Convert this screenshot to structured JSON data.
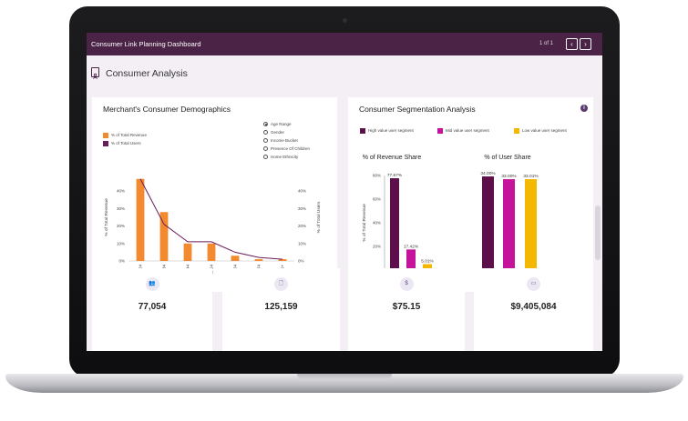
{
  "window": {
    "title": "Consumer Link Planning Dashboard",
    "page_indicator": "1 of 1",
    "prev_icon": "chevron-left-icon",
    "next_icon": "chevron-right-icon"
  },
  "section": {
    "title": "Consumer Analysis",
    "icon": "document-person-icon"
  },
  "demographics": {
    "title": "Merchant's Consumer Demographics",
    "legend": [
      {
        "label": "% of Total Revenue",
        "color": "#f28a30"
      },
      {
        "label": "% of Total Users",
        "color": "#6a1b5c"
      }
    ],
    "filters": [
      {
        "label": "Age Range",
        "selected": true
      },
      {
        "label": "Gender",
        "selected": false
      },
      {
        "label": "Income Bucket",
        "selected": false
      },
      {
        "label": "Presence Of Children",
        "selected": false
      },
      {
        "label": "Home Ethnicity",
        "selected": false
      }
    ]
  },
  "segmentation": {
    "title": "Consumer Segmentation Analysis",
    "info_icon": "info-icon",
    "legend": [
      {
        "label": "High value user segment",
        "color": "#5c0f4a"
      },
      {
        "label": "Mid value user segment",
        "color": "#c6139b"
      },
      {
        "label": "Low value user segment",
        "color": "#f5b800"
      }
    ]
  },
  "kpis": [
    {
      "icon": "users-icon",
      "glyph": "👥",
      "value": "77,054"
    },
    {
      "icon": "document-icon",
      "glyph": "🗋",
      "value": "125,159"
    },
    {
      "icon": "dollar-icon",
      "glyph": "$",
      "value": "$75.15"
    },
    {
      "icon": "card-icon",
      "glyph": "▭",
      "value": "$9,405,084"
    }
  ],
  "chart_data": [
    {
      "type": "bar",
      "title": "",
      "categories": [
        "18-24",
        "25-34",
        "35-44",
        "45-54",
        "55-64",
        "65-74",
        "75+"
      ],
      "series": [
        {
          "name": "% of Total Revenue",
          "type": "bar",
          "axis": "left",
          "values": [
            47,
            28,
            10,
            10,
            3,
            1,
            1
          ]
        },
        {
          "name": "% of Total Users",
          "type": "line",
          "axis": "right",
          "values": [
            47,
            21,
            11,
            11,
            5,
            2,
            1
          ]
        }
      ],
      "ylabel": "% of Total Revenue",
      "y2label": "% of Total Users",
      "ylim": [
        0,
        50
      ],
      "yticks": [
        "0%",
        "10%",
        "20%",
        "30%",
        "40%"
      ],
      "y2ticks": [
        "0%",
        "10%",
        "20%",
        "30%",
        "40%"
      ],
      "legend": "top-left"
    },
    {
      "type": "bar",
      "title": "% of Revenue Share",
      "categories": [
        "High value user segment",
        "Mid value user segment",
        "Low value user segment"
      ],
      "values": [
        77.67,
        17.42,
        5.01
      ],
      "data_labels": [
        "77.67%",
        "17.42%",
        "5.01%"
      ],
      "ylabel": "% of Total Revenue",
      "ylim": [
        0,
        80
      ],
      "yticks": [
        "0%",
        "20%",
        "40%",
        "60%",
        "80%"
      ]
    },
    {
      "type": "bar",
      "title": "% of User Share",
      "categories": [
        "High value user segment",
        "Mid value user segment",
        "Low value user segment"
      ],
      "values": [
        34.0,
        33.0,
        33.01
      ],
      "data_labels": [
        "34.00%",
        "33.00%",
        "33.01%"
      ],
      "ylim": [
        0,
        35
      ]
    }
  ]
}
